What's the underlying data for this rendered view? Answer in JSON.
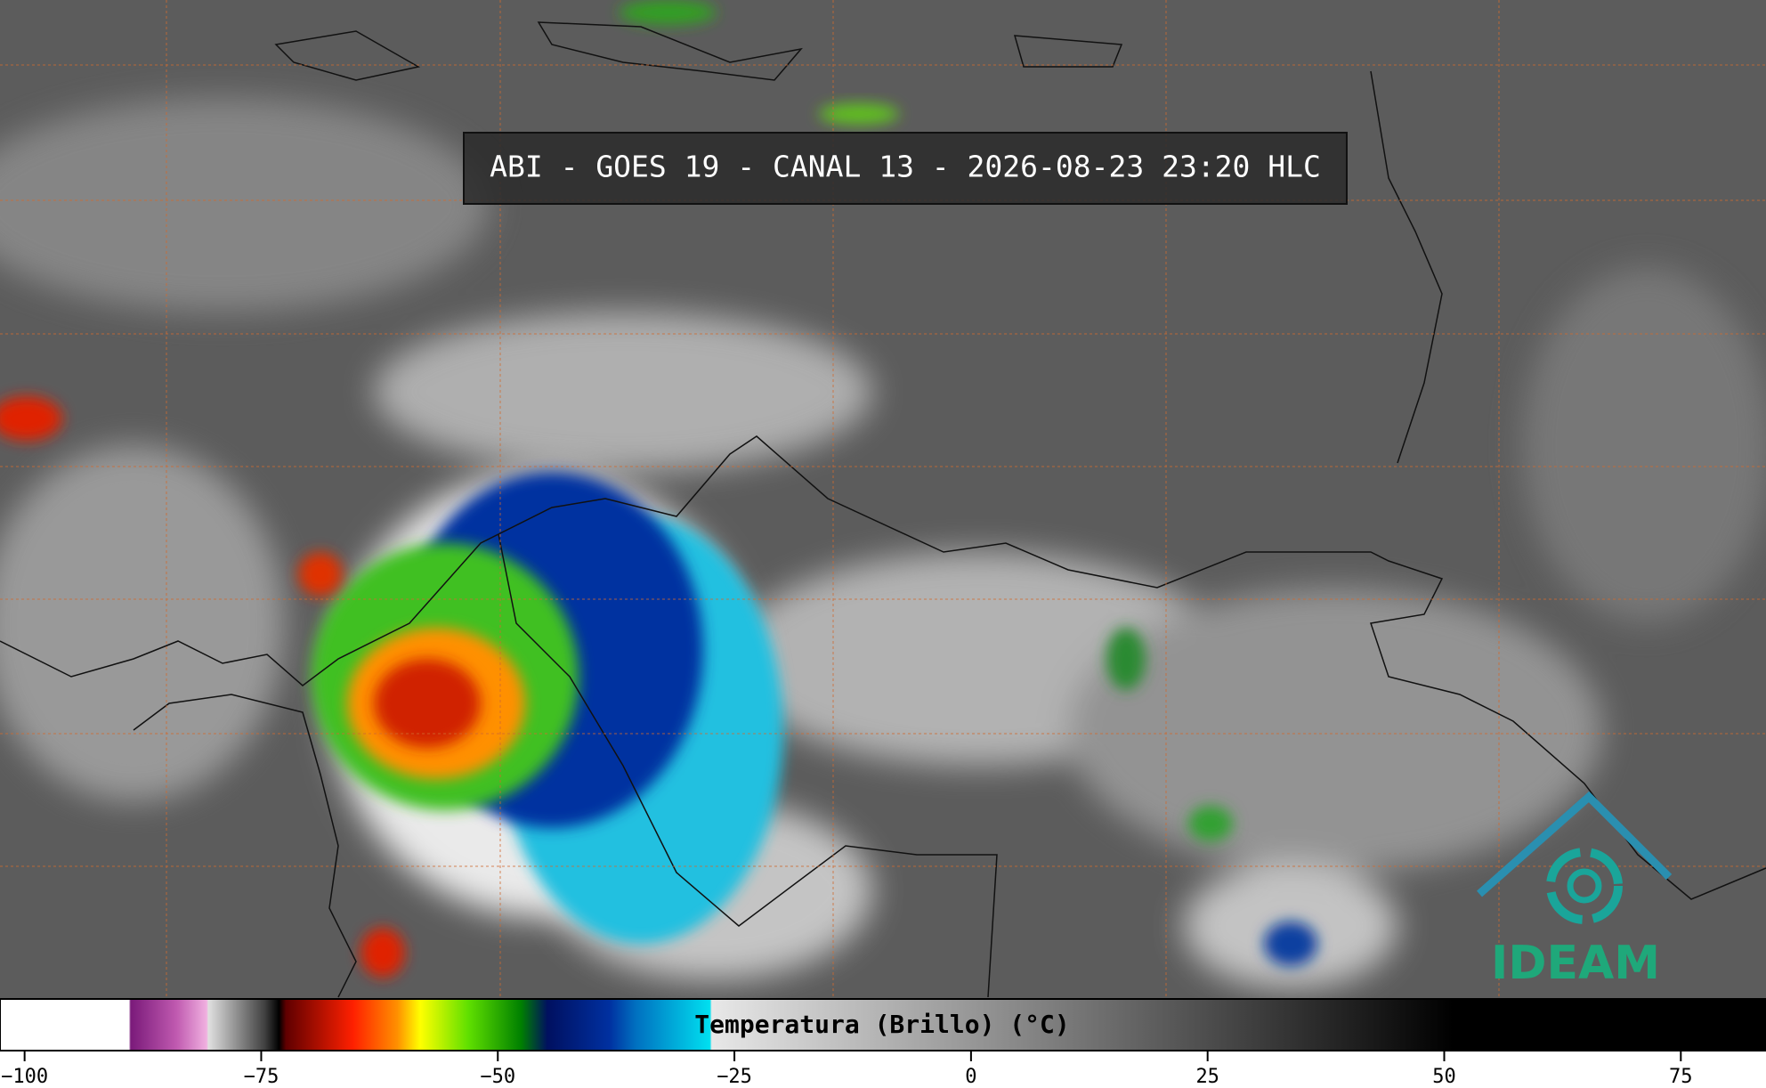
{
  "title": "ABI - GOES 19 - CANAL 13 - 2026-08-23 23:20 HLC",
  "colorbar": {
    "label": "Temperatura (Brillo) (°C)",
    "xlim": [
      -102.6,
      84
    ],
    "xticks": [
      {
        "value": -100,
        "label": "−100"
      },
      {
        "value": -75,
        "label": "−75"
      },
      {
        "value": -50,
        "label": "−50"
      },
      {
        "value": -25,
        "label": "−25"
      },
      0,
      25,
      50,
      75
    ]
  },
  "logo": {
    "text": "IDEAM"
  }
}
